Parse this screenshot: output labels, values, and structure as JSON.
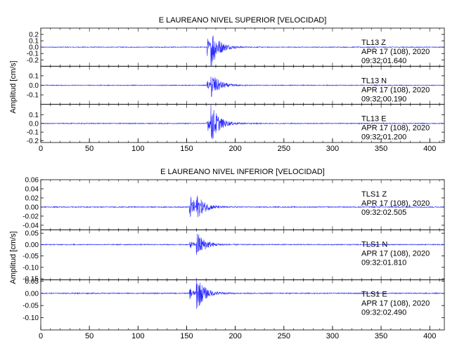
{
  "chart_data": [
    {
      "type": "line",
      "title": "E LAUREANO NIVEL SUPERIOR [VELOCIDAD]",
      "ylabel": "Amplitud [cm/s]",
      "xlabel": "",
      "xlim": [
        0,
        415
      ],
      "x_ticks": [
        0,
        50,
        100,
        150,
        200,
        250,
        300,
        350,
        400
      ],
      "grid": false,
      "series_color": "#2b2bff",
      "panels": [
        {
          "name": "TL13  Z",
          "date": "APR 17 (108), 2020",
          "time": "09:32:01.640",
          "ylim": [
            -0.3,
            0.3
          ],
          "y_ticks": [
            -0.2,
            -0.1,
            0.0,
            0.1,
            0.2
          ],
          "y_tick_labels": [
            "-0.2",
            "-0.1",
            "0.0",
            "0.1",
            "0.2"
          ],
          "noise": 0.006,
          "events": [
            {
              "t": 171,
              "amp": 0.15,
              "dur": 11
            },
            {
              "t": 175,
              "amp": 0.28,
              "dur": 18
            }
          ]
        },
        {
          "name": "TL13  N",
          "date": "APR 17 (108), 2020",
          "time": "09:32:00.190",
          "ylim": [
            -0.2,
            0.2
          ],
          "y_ticks": [
            -0.1,
            0.0,
            0.1
          ],
          "y_tick_labels": [
            "-0.1",
            "0.0",
            "0.1"
          ],
          "noise": 0.004,
          "events": [
            {
              "t": 171,
              "amp": 0.05,
              "dur": 10
            },
            {
              "t": 175,
              "amp": 0.13,
              "dur": 18
            }
          ]
        },
        {
          "name": "TL13  E",
          "date": "APR 17 (108), 2020",
          "time": "09:32:01.200",
          "ylim": [
            -0.22,
            0.22
          ],
          "y_ticks": [
            -0.2,
            -0.1,
            0.0,
            0.1
          ],
          "y_tick_labels": [
            "-0.2",
            "-0.1",
            "0.0",
            "0.1"
          ],
          "noise": 0.005,
          "events": [
            {
              "t": 171,
              "amp": 0.1,
              "dur": 11
            },
            {
              "t": 175,
              "amp": 0.2,
              "dur": 18
            }
          ]
        }
      ]
    },
    {
      "type": "line",
      "title": "E LAUREANO NIVEL INFERIOR [VELOCIDAD]",
      "ylabel": "Amplitud [cm/s]",
      "xlabel": "",
      "xlim": [
        0,
        415
      ],
      "x_ticks": [
        0,
        50,
        100,
        150,
        200,
        250,
        300,
        350,
        400
      ],
      "grid": false,
      "series_color": "#2b2bff",
      "panels": [
        {
          "name": "TLS1  Z",
          "date": "APR 17 (108), 2020",
          "time": "09:32:02.505",
          "ylim": [
            -0.05,
            0.06
          ],
          "y_ticks": [
            -0.04,
            -0.02,
            0.0,
            0.02,
            0.04,
            0.06
          ],
          "y_tick_labels": [
            "-0.04",
            "-0.02",
            "0.00",
            "0.02",
            "0.04",
            "0.06"
          ],
          "noise": 0.001,
          "events": [
            {
              "t": 153,
              "amp": 0.028,
              "dur": 14
            },
            {
              "t": 160,
              "amp": 0.02,
              "dur": 20
            }
          ]
        },
        {
          "name": "TLS1  N",
          "date": "APR 17 (108), 2020",
          "time": "09:32:01.810",
          "ylim": [
            -0.155,
            0.065
          ],
          "y_ticks": [
            -0.15,
            -0.1,
            -0.05,
            0.0,
            0.05
          ],
          "y_tick_labels": [
            "-0.15",
            "-0.10",
            "-0.05",
            "0.00",
            "0.05"
          ],
          "noise": 0.002,
          "events": [
            {
              "t": 153,
              "amp": 0.02,
              "dur": 8
            },
            {
              "t": 160,
              "amp": 0.06,
              "dur": 18
            }
          ]
        },
        {
          "name": "TLS1  E",
          "date": "APR 17 (108), 2020",
          "time": "09:32:02.490",
          "ylim": [
            -0.15,
            0.055
          ],
          "y_ticks": [
            -0.1,
            -0.05,
            0.0,
            0.05
          ],
          "y_tick_labels": [
            "-0.10",
            "-0.05",
            "0.00",
            "0.05"
          ],
          "noise": 0.002,
          "events": [
            {
              "t": 153,
              "amp": 0.025,
              "dur": 10
            },
            {
              "t": 160,
              "amp": 0.07,
              "dur": 18
            }
          ]
        }
      ]
    }
  ]
}
